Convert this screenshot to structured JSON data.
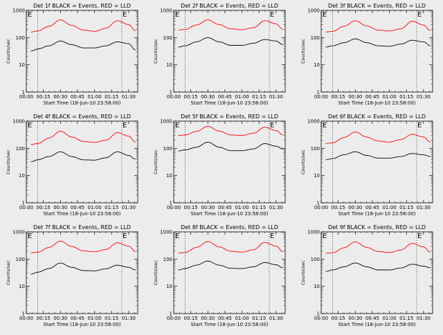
{
  "figure": {
    "x_axis_label": "Start Time (18-Jun-10 23:58:00)",
    "y_axis_label": "Counts/sec",
    "x_ticks": [
      "00:00",
      "00:15",
      "00:30",
      "00:45",
      "01:00",
      "01:15",
      "01:30"
    ],
    "y_ticks": [
      "1",
      "10",
      "100",
      "1000"
    ],
    "marker_label": "E",
    "series_colors": {
      "events": "#000000",
      "lld": "#ff0000"
    }
  },
  "chart_data": [
    {
      "type": "line",
      "title": "Det 1f BLACK = Events, RED = LLD",
      "xlabel": "Start Time (18-Jun-10 23:58:00)",
      "ylabel": "Counts/sec",
      "y_scale": "log",
      "ylim": [
        1,
        1000
      ],
      "xlim": [
        "00:00",
        "01:38"
      ],
      "vlines": [
        "00:10",
        "01:24"
      ],
      "x": [
        "00:04",
        "00:10",
        "00:20",
        "00:30",
        "00:40",
        "00:50",
        "01:00",
        "01:10",
        "01:20",
        "01:30",
        "01:36"
      ],
      "series": [
        {
          "values": [
            32,
            38,
            50,
            75,
            55,
            42,
            42,
            50,
            70,
            60,
            35
          ]
        },
        {
          "values": [
            160,
            175,
            260,
            450,
            280,
            190,
            170,
            220,
            420,
            300,
            180
          ]
        }
      ]
    },
    {
      "type": "line",
      "title": "Det 2f BLACK = Events, RED = LLD",
      "xlabel": "Start Time (18-Jun-10 23:58:00)",
      "ylabel": "Counts/sec",
      "y_scale": "log",
      "ylim": [
        1,
        1000
      ],
      "xlim": [
        "00:00",
        "01:38"
      ],
      "vlines": [
        "00:10",
        "01:24"
      ],
      "x": [
        "00:04",
        "00:10",
        "00:20",
        "00:30",
        "00:40",
        "00:50",
        "01:00",
        "01:10",
        "01:20",
        "01:30",
        "01:36"
      ],
      "series": [
        {
          "values": [
            45,
            50,
            70,
            100,
            70,
            52,
            52,
            62,
            85,
            75,
            55
          ]
        },
        {
          "values": [
            190,
            200,
            290,
            450,
            300,
            210,
            195,
            230,
            420,
            320,
            200
          ]
        }
      ]
    },
    {
      "type": "line",
      "title": "Det 3f BLACK = Events, RED = LLD",
      "xlabel": "Start Time (18-Jun-10 23:58:00)",
      "ylabel": "Counts/sec",
      "y_scale": "log",
      "ylim": [
        1,
        1000
      ],
      "xlim": [
        "00:00",
        "01:38"
      ],
      "vlines": [
        "00:10",
        "01:24"
      ],
      "x": [
        "00:04",
        "00:10",
        "00:20",
        "00:30",
        "00:40",
        "00:50",
        "01:00",
        "01:10",
        "01:20",
        "01:30",
        "01:36"
      ],
      "series": [
        {
          "values": [
            45,
            50,
            65,
            90,
            65,
            50,
            48,
            58,
            80,
            70,
            50
          ]
        },
        {
          "values": [
            160,
            170,
            260,
            420,
            270,
            190,
            175,
            210,
            400,
            290,
            180
          ]
        }
      ]
    },
    {
      "type": "line",
      "title": "Det 4f BLACK = Events, RED = LLD",
      "xlabel": "Start Time (18-Jun-10 23:58:00)",
      "ylabel": "Counts/sec",
      "y_scale": "log",
      "ylim": [
        1,
        1000
      ],
      "xlim": [
        "00:00",
        "01:38"
      ],
      "vlines": [
        "00:10",
        "01:24"
      ],
      "x": [
        "00:04",
        "00:10",
        "00:20",
        "00:30",
        "00:40",
        "00:50",
        "01:00",
        "01:10",
        "01:20",
        "01:30",
        "01:36"
      ],
      "series": [
        {
          "values": [
            32,
            38,
            50,
            75,
            50,
            38,
            37,
            45,
            75,
            55,
            40
          ]
        },
        {
          "values": [
            140,
            150,
            240,
            430,
            260,
            180,
            165,
            200,
            380,
            280,
            170
          ]
        }
      ]
    },
    {
      "type": "line",
      "title": "Det 5f BLACK = Events, RED = LLD",
      "xlabel": "Start Time (18-Jun-10 23:58:00)",
      "ylabel": "Counts/sec",
      "y_scale": "log",
      "ylim": [
        1,
        1000
      ],
      "xlim": [
        "00:00",
        "01:38"
      ],
      "vlines": [
        "00:10",
        "01:24"
      ],
      "x": [
        "00:04",
        "00:10",
        "00:20",
        "00:30",
        "00:40",
        "00:50",
        "01:00",
        "01:10",
        "01:20",
        "01:30",
        "01:36"
      ],
      "series": [
        {
          "values": [
            80,
            88,
            110,
            170,
            110,
            82,
            82,
            95,
            150,
            120,
            95
          ]
        },
        {
          "values": [
            300,
            310,
            420,
            650,
            430,
            310,
            300,
            360,
            600,
            450,
            310
          ]
        }
      ]
    },
    {
      "type": "line",
      "title": "Det 6f BLACK = Events, RED = LLD",
      "xlabel": "Start Time (18-Jun-10 23:58:00)",
      "ylabel": "Counts/sec",
      "y_scale": "log",
      "ylim": [
        1,
        1000
      ],
      "xlim": [
        "00:00",
        "01:38"
      ],
      "vlines": [
        "00:10",
        "01:24"
      ],
      "x": [
        "00:04",
        "00:10",
        "00:20",
        "00:30",
        "00:40",
        "00:50",
        "01:00",
        "01:10",
        "01:20",
        "01:30",
        "01:36"
      ],
      "series": [
        {
          "values": [
            38,
            42,
            58,
            75,
            55,
            44,
            44,
            50,
            65,
            58,
            50
          ]
        },
        {
          "values": [
            150,
            160,
            250,
            400,
            260,
            185,
            170,
            210,
            330,
            260,
            170
          ]
        }
      ]
    },
    {
      "type": "line",
      "title": "Det 7f BLACK = Events, RED = LLD",
      "xlabel": "Start Time (18-Jun-10 23:58:00)",
      "ylabel": "Counts/sec",
      "y_scale": "log",
      "ylim": [
        1,
        1000
      ],
      "xlim": [
        "00:00",
        "01:38"
      ],
      "vlines": [
        "00:10",
        "01:24"
      ],
      "x": [
        "00:04",
        "00:10",
        "00:20",
        "00:30",
        "00:40",
        "00:50",
        "01:00",
        "01:10",
        "01:20",
        "01:30",
        "01:36"
      ],
      "series": [
        {
          "values": [
            28,
            33,
            45,
            72,
            50,
            38,
            37,
            44,
            60,
            50,
            40
          ]
        },
        {
          "values": [
            170,
            180,
            270,
            460,
            290,
            200,
            185,
            225,
            400,
            300,
            190
          ]
        }
      ]
    },
    {
      "type": "line",
      "title": "Det 8f BLACK = Events, RED = LLD",
      "xlabel": "Start Time (18-Jun-10 23:58:00)",
      "ylabel": "Counts/sec",
      "y_scale": "log",
      "ylim": [
        1,
        1000
      ],
      "xlim": [
        "00:00",
        "01:38"
      ],
      "vlines": [
        "00:10",
        "01:24"
      ],
      "x": [
        "00:04",
        "00:10",
        "00:20",
        "00:30",
        "00:40",
        "00:50",
        "01:00",
        "01:10",
        "01:20",
        "01:30",
        "01:36"
      ],
      "series": [
        {
          "values": [
            40,
            45,
            60,
            85,
            60,
            46,
            45,
            52,
            75,
            62,
            48
          ]
        },
        {
          "values": [
            165,
            175,
            270,
            440,
            280,
            195,
            180,
            220,
            410,
            300,
            185
          ]
        }
      ]
    },
    {
      "type": "line",
      "title": "Det 9f BLACK = Events, RED = LLD",
      "xlabel": "Start Time (18-Jun-10 23:58:00)",
      "ylabel": "Counts/sec",
      "y_scale": "log",
      "ylim": [
        1,
        1000
      ],
      "xlim": [
        "00:00",
        "01:38"
      ],
      "vlines": [
        "00:10",
        "01:24"
      ],
      "x": [
        "00:04",
        "00:10",
        "00:20",
        "00:30",
        "00:40",
        "00:50",
        "01:00",
        "01:10",
        "01:20",
        "01:30",
        "01:36"
      ],
      "series": [
        {
          "values": [
            35,
            40,
            52,
            72,
            52,
            40,
            40,
            47,
            65,
            55,
            48
          ]
        },
        {
          "values": [
            165,
            170,
            260,
            430,
            270,
            190,
            175,
            215,
            380,
            280,
            180
          ]
        }
      ]
    }
  ]
}
